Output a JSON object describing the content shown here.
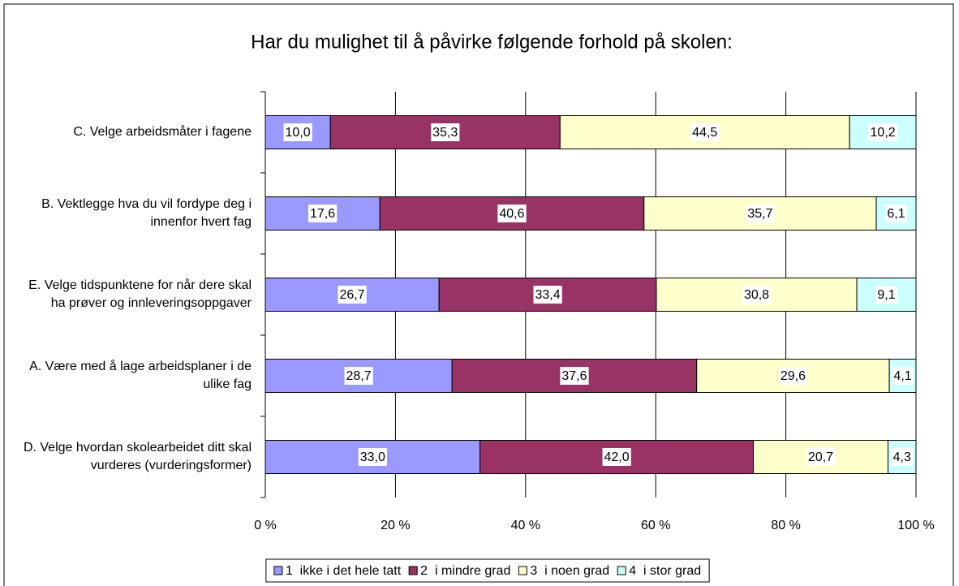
{
  "chart_data": {
    "type": "stacked-barh",
    "title": "Har du mulighet til å påvirke følgende forhold på skolen:",
    "categories": [
      "C. Velge arbeidsmåter i fagene",
      "B. Vektlegge hva du vil fordype deg i innenfor hvert fag",
      "E. Velge tidspunktene for når dere skal ha prøver og innleveringsoppgaver",
      "A. Være med å lage arbeidsplaner i de ulike fag",
      "D. Velge hvordan skolearbeidet ditt skal vurderes (vurderingsformer)"
    ],
    "series": [
      {
        "name": "1  ikke i det hele tatt",
        "color": "#9999ff",
        "values": [
          10.0,
          17.6,
          26.7,
          28.7,
          33.0
        ],
        "value_labels": [
          "10,0",
          "17,6",
          "26,7",
          "28,7",
          "33,0"
        ]
      },
      {
        "name": "2  i mindre grad",
        "color": "#993366",
        "values": [
          35.3,
          40.6,
          33.4,
          37.6,
          42.0
        ],
        "value_labels": [
          "35,3",
          "40,6",
          "33,4",
          "37,6",
          "42,0"
        ]
      },
      {
        "name": "3  i noen grad",
        "color": "#ffffcc",
        "values": [
          44.5,
          35.7,
          30.8,
          29.6,
          20.7
        ],
        "value_labels": [
          "44,5",
          "35,7",
          "30,8",
          "29,6",
          "20,7"
        ]
      },
      {
        "name": "4  i stor grad",
        "color": "#ccffff",
        "values": [
          10.2,
          6.1,
          9.1,
          4.1,
          4.3
        ],
        "value_labels": [
          "10,2",
          "6,1",
          "9,1",
          "4,1",
          "4,3"
        ]
      }
    ],
    "xlim": [
      0,
      100
    ],
    "xticks": [
      {
        "value": 0,
        "label": "0 %"
      },
      {
        "value": 20,
        "label": "20 %"
      },
      {
        "value": 40,
        "label": "40 %"
      },
      {
        "value": 60,
        "label": "60 %"
      },
      {
        "value": 80,
        "label": "80 %"
      },
      {
        "value": 100,
        "label": "100 %"
      }
    ],
    "grid": true,
    "legend": "bottom"
  }
}
